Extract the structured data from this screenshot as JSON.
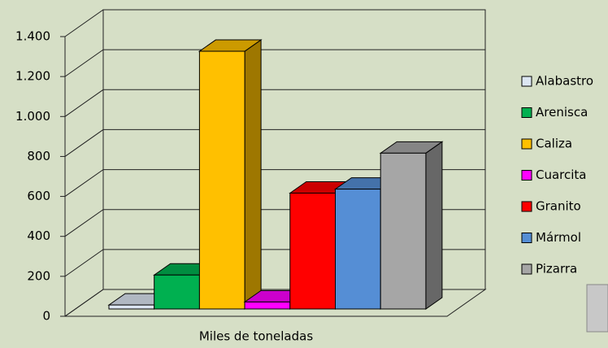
{
  "chart_data": {
    "type": "bar3d",
    "categories": [
      "Miles de toneladas"
    ],
    "series": [
      {
        "name": "Alabastro",
        "color": "#dce6f2",
        "values": [
          20
        ]
      },
      {
        "name": "Arenisca",
        "color": "#00b050",
        "values": [
          170
        ]
      },
      {
        "name": "Caliza",
        "color": "#ffc000",
        "values": [
          1290
        ]
      },
      {
        "name": "Cuarcita",
        "color": "#ff00ff",
        "values": [
          35
        ]
      },
      {
        "name": "Granito",
        "color": "#ff0000",
        "values": [
          580
        ]
      },
      {
        "name": "Mármol",
        "color": "#558ed5",
        "values": [
          600
        ]
      },
      {
        "name": "Pizarra",
        "color": "#a6a6a6",
        "values": [
          780
        ]
      }
    ],
    "ylim": [
      0,
      1400
    ],
    "yticks": [
      0,
      200,
      400,
      600,
      800,
      {
        "value": 1000,
        "label": "1.000"
      },
      {
        "value": 1200,
        "label": "1.200"
      },
      {
        "value": 1400,
        "label": "1.400"
      }
    ],
    "grid": true,
    "legend": "right"
  }
}
